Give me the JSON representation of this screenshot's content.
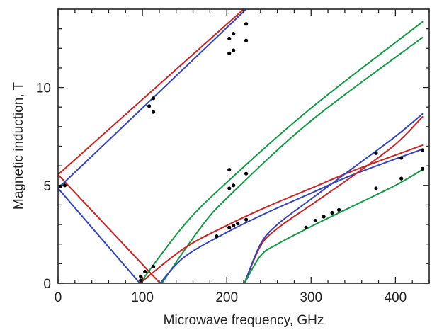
{
  "chart_data": {
    "type": "line",
    "title": "",
    "xlabel": "Microwave frequency, GHz",
    "ylabel": "Magnetic induction, T",
    "xlim": [
      0,
      440
    ],
    "ylim": [
      0,
      14
    ],
    "x_ticks": [
      0,
      100,
      200,
      300,
      400
    ],
    "y_ticks": [
      0,
      5,
      10
    ],
    "x_tick_labels": [
      "0",
      "100",
      "200",
      "300",
      "400"
    ],
    "y_tick_labels": [
      "0",
      "5",
      "10"
    ],
    "grid": false,
    "legend": "none",
    "colors": {
      "red": "#cc2222",
      "blue": "#3344bb",
      "green": "#119944",
      "points": "#000000",
      "axis": "#222222"
    },
    "series": [
      {
        "color": "red",
        "x": [
          0,
          121
        ],
        "y": [
          5.55,
          0.0
        ]
      },
      {
        "color": "blue",
        "x": [
          0,
          97
        ],
        "y": [
          4.85,
          0.0
        ]
      },
      {
        "color": "red",
        "x": [
          0,
          220
        ],
        "y": [
          5.55,
          14.0
        ]
      },
      {
        "color": "blue",
        "x": [
          0,
          223
        ],
        "y": [
          4.85,
          14.0
        ]
      },
      {
        "color": "green",
        "x": [
          97,
          150,
          200,
          300,
          432
        ],
        "y": [
          0.0,
          3.0,
          5.15,
          8.95,
          13.35
        ]
      },
      {
        "color": "green",
        "x": [
          123,
          170,
          205,
          300,
          432
        ],
        "y": [
          0.0,
          2.9,
          4.55,
          8.3,
          12.55
        ]
      },
      {
        "color": "red",
        "x": [
          97,
          150,
          200,
          250,
          300,
          350,
          432
        ],
        "y": [
          0.0,
          1.8,
          2.95,
          3.95,
          4.85,
          5.75,
          7.05
        ]
      },
      {
        "color": "blue",
        "x": [
          121,
          150,
          200,
          250,
          300,
          350,
          432
        ],
        "y": [
          0.0,
          1.35,
          2.6,
          3.65,
          4.6,
          5.55,
          6.85
        ]
      },
      {
        "color": "red",
        "x": [
          221,
          240,
          260,
          300,
          350,
          400,
          432
        ],
        "y": [
          0.0,
          1.9,
          2.8,
          4.0,
          5.5,
          7.1,
          8.5
        ]
      },
      {
        "color": "blue",
        "x": [
          221,
          240,
          260,
          300,
          350,
          400,
          432
        ],
        "y": [
          0.0,
          2.0,
          3.0,
          4.3,
          5.9,
          7.5,
          8.65
        ]
      },
      {
        "color": "green",
        "x": [
          221,
          240,
          260,
          300,
          350,
          400,
          432
        ],
        "y": [
          0.0,
          1.4,
          2.0,
          2.9,
          3.95,
          5.0,
          5.8
        ]
      }
    ],
    "points": [
      {
        "x": 108,
        "y": 9.05
      },
      {
        "x": 113,
        "y": 9.45
      },
      {
        "x": 113,
        "y": 8.75
      },
      {
        "x": 203,
        "y": 12.5
      },
      {
        "x": 208,
        "y": 12.75
      },
      {
        "x": 223,
        "y": 13.25
      },
      {
        "x": 203,
        "y": 11.75
      },
      {
        "x": 208,
        "y": 11.9
      },
      {
        "x": 223,
        "y": 12.4
      },
      {
        "x": 203,
        "y": 5.8
      },
      {
        "x": 223,
        "y": 5.6
      },
      {
        "x": 203,
        "y": 4.85
      },
      {
        "x": 208,
        "y": 5.0
      },
      {
        "x": 188,
        "y": 2.4
      },
      {
        "x": 203,
        "y": 2.85
      },
      {
        "x": 208,
        "y": 2.95
      },
      {
        "x": 213,
        "y": 3.05
      },
      {
        "x": 223,
        "y": 3.25
      },
      {
        "x": 98,
        "y": 0.15
      },
      {
        "x": 98,
        "y": 0.35
      },
      {
        "x": 103,
        "y": 0.6
      },
      {
        "x": 113,
        "y": 0.85
      },
      {
        "x": 294,
        "y": 2.85
      },
      {
        "x": 305,
        "y": 3.2
      },
      {
        "x": 315,
        "y": 3.4
      },
      {
        "x": 325,
        "y": 3.6
      },
      {
        "x": 333,
        "y": 3.75
      },
      {
        "x": 377,
        "y": 6.65
      },
      {
        "x": 407,
        "y": 6.4
      },
      {
        "x": 432,
        "y": 6.8
      },
      {
        "x": 377,
        "y": 4.85
      },
      {
        "x": 407,
        "y": 5.35
      },
      {
        "x": 432,
        "y": 5.85
      },
      {
        "x": 3,
        "y": 4.95
      },
      {
        "x": 8,
        "y": 5.0
      }
    ]
  }
}
